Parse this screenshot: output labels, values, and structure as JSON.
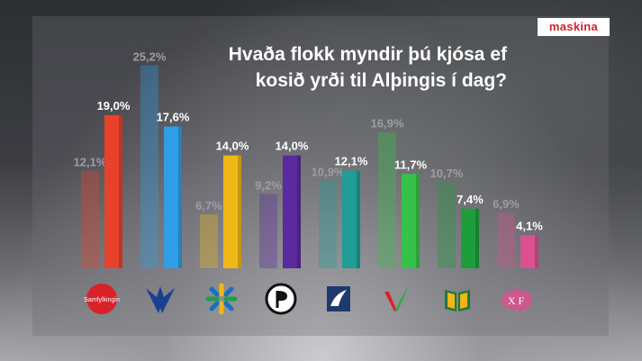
{
  "brand": {
    "logo_text": "maskina",
    "logo_color": "#d2232a"
  },
  "title": {
    "line1": "Hvaða flokk myndir þú kjósa ef",
    "line2": "kosið yrði til Alþingis í dag?"
  },
  "chart_data": {
    "type": "bar",
    "title": "Hvaða flokk myndir þú kjósa ef kosið yrði til Alþingis í dag?",
    "categories": [
      "Samfylkingin",
      "Sjálfstæðisflokkurinn",
      "Framsóknarflokkurinn",
      "Píratar",
      "Viðreisn",
      "Vinstri græn",
      "Miðflokkurinn",
      "Flokkur fólksins"
    ],
    "series": [
      {
        "values": [
          12.1,
          25.2,
          6.7,
          9.2,
          10.9,
          16.9,
          10.7,
          6.9
        ],
        "labels": [
          "12,1%",
          "25,2%",
          "6,7%",
          "9,2%",
          "10,9%",
          "16,9%",
          "10,7%",
          "6,9%"
        ],
        "style": "faded"
      },
      {
        "values": [
          19.0,
          17.6,
          14.0,
          14.0,
          12.1,
          11.7,
          7.4,
          4.1
        ],
        "labels": [
          "19,0%",
          "17,6%",
          "14,0%",
          "14,0%",
          "12,1%",
          "11,7%",
          "7,4%",
          "4,1%"
        ],
        "style": "solid"
      }
    ],
    "colors": [
      "#e8412c",
      "#2e9ee6",
      "#f0b816",
      "#5b2a9e",
      "#1f9d96",
      "#36c24a",
      "#1e9e3a",
      "#d9528f"
    ],
    "ylim": [
      0,
      27
    ],
    "legend": "none",
    "grid": false
  },
  "logos": [
    {
      "icon": "samfylkingin-logo",
      "text": "Samfylkingin"
    },
    {
      "icon": "falcon-logo"
    },
    {
      "icon": "snowflake-logo"
    },
    {
      "icon": "pirate-flag-logo"
    },
    {
      "icon": "vidreisn-logo"
    },
    {
      "icon": "v-check-logo"
    },
    {
      "icon": "book-logo"
    },
    {
      "icon": "flokkur-folksins-logo",
      "text": "X F"
    }
  ]
}
